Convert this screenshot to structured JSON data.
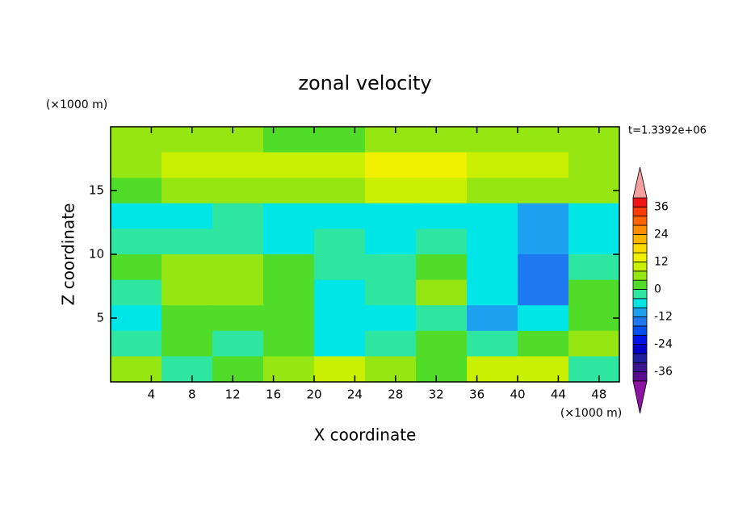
{
  "chart_data": {
    "type": "contour",
    "title": "zonal velocity",
    "x_label": "X coordinate",
    "y_label": "Z coordinate",
    "x_unit": "(×1000 m)",
    "y_unit": "(×1000 m)",
    "annotation": "t=1.3392e+06",
    "x": [
      2.5,
      7.5,
      12.5,
      17.5,
      22.5,
      27.5,
      32.5,
      37.5,
      42.5,
      47.5
    ],
    "z": [
      19,
      17,
      15,
      13,
      11,
      9,
      7,
      5,
      3,
      1
    ],
    "values": [
      [
        4,
        4,
        4,
        2,
        2,
        4,
        4,
        4,
        4,
        6
      ],
      [
        6,
        8,
        10,
        10,
        10,
        12,
        12,
        10,
        8,
        6
      ],
      [
        2,
        4,
        6,
        6,
        6,
        8,
        8,
        6,
        6,
        4
      ],
      [
        -6,
        -6,
        -4,
        -6,
        -6,
        -6,
        -6,
        -8,
        -10,
        -6
      ],
      [
        -2,
        -2,
        -2,
        -6,
        -2,
        -6,
        -2,
        -6,
        -12,
        -6
      ],
      [
        2,
        6,
        6,
        2,
        -2,
        -2,
        2,
        -6,
        -14,
        -4
      ],
      [
        -2,
        6,
        6,
        2,
        -6,
        -2,
        4,
        -6,
        -14,
        2
      ],
      [
        -8,
        2,
        2,
        2,
        -6,
        -6,
        -2,
        -10,
        -6,
        2
      ],
      [
        -2,
        2,
        -2,
        2,
        -6,
        -2,
        2,
        -2,
        2,
        6
      ],
      [
        6,
        -2,
        2,
        6,
        10,
        6,
        2,
        8,
        10,
        -2
      ]
    ],
    "xlim": [
      0,
      50
    ],
    "ylim": [
      0,
      20
    ],
    "xticks": [
      4,
      8,
      12,
      16,
      20,
      24,
      28,
      32,
      36,
      40,
      44,
      48
    ],
    "yticks": [
      5,
      10,
      15
    ],
    "levels": [
      -40,
      -36,
      -32,
      -28,
      -24,
      -20,
      -16,
      -12,
      -8,
      -4,
      0,
      4,
      8,
      12,
      16,
      20,
      24,
      28,
      32,
      36,
      40
    ],
    "colors": [
      "#5a0a8c",
      "#3c1490",
      "#1e1ea0",
      "#0000c8",
      "#0014e6",
      "#0050f0",
      "#1e78f0",
      "#1ea0f0",
      "#00e6e6",
      "#2ee6a0",
      "#50dc28",
      "#96e614",
      "#c8f000",
      "#f0f000",
      "#ffdc00",
      "#ffb400",
      "#ff8c00",
      "#ff6400",
      "#ff3c00",
      "#f01414"
    ],
    "under_color": "#8c14a0",
    "over_color": "#f4a0a0",
    "colorbar_ticks": [
      -36,
      -24,
      -12,
      0,
      12,
      24,
      36
    ]
  }
}
